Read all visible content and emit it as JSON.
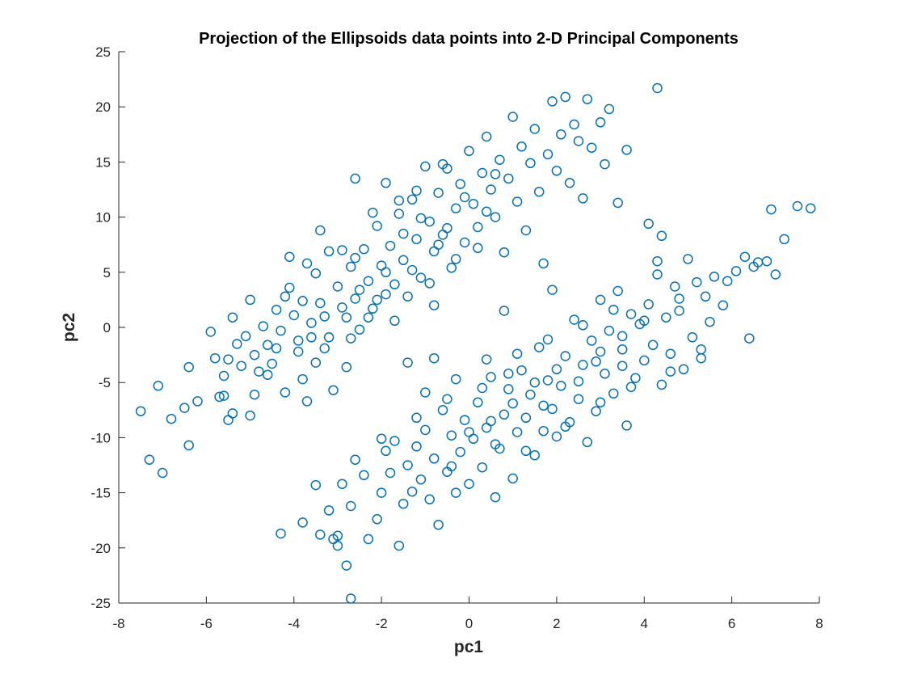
{
  "chart_data": {
    "type": "scatter",
    "title": "Projection of the Ellipsoids data points into 2-D Principal Components",
    "xlabel": "pc1",
    "ylabel": "pc2",
    "xlim": [
      -8,
      8
    ],
    "ylim": [
      -25,
      25
    ],
    "xticks": [
      -8,
      -6,
      -4,
      -2,
      0,
      2,
      4,
      6,
      8
    ],
    "yticks": [
      -25,
      -20,
      -15,
      -10,
      -5,
      0,
      5,
      10,
      15,
      20,
      25
    ],
    "xtick_labels": [
      "-8",
      "-6",
      "-4",
      "-2",
      "0",
      "2",
      "4",
      "6",
      "8"
    ],
    "ytick_labels": [
      "-25",
      "-20",
      "-15",
      "-10",
      "-5",
      "0",
      "5",
      "10",
      "15",
      "20",
      "25"
    ],
    "grid": false,
    "marker": "open-circle",
    "marker_color": "#0072BD",
    "series": [
      {
        "points": [
          [
            -7.5,
            -7.6
          ],
          [
            -7.3,
            -12.0
          ],
          [
            -7.0,
            -13.2
          ],
          [
            -7.1,
            -5.3
          ],
          [
            -6.8,
            -8.3
          ],
          [
            -6.5,
            -7.3
          ],
          [
            -6.4,
            -10.7
          ],
          [
            -6.4,
            -3.6
          ],
          [
            -6.2,
            -6.7
          ],
          [
            -5.8,
            -2.8
          ],
          [
            -5.7,
            -6.3
          ],
          [
            -5.6,
            -6.2
          ],
          [
            -5.6,
            -4.4
          ],
          [
            -5.5,
            -8.4
          ],
          [
            -5.4,
            -7.8
          ],
          [
            -5.4,
            0.9
          ],
          [
            -5.3,
            -1.5
          ],
          [
            -5.2,
            -3.5
          ],
          [
            -5.1,
            -0.8
          ],
          [
            -5.0,
            -8.0
          ],
          [
            -4.9,
            -6.1
          ],
          [
            -4.9,
            -2.5
          ],
          [
            -4.8,
            -4.0
          ],
          [
            -4.7,
            0.1
          ],
          [
            -4.6,
            -1.6
          ],
          [
            -4.5,
            -3.3
          ],
          [
            -4.4,
            1.6
          ],
          [
            -4.3,
            -0.3
          ],
          [
            -4.2,
            -5.9
          ],
          [
            -4.1,
            6.4
          ],
          [
            -4.1,
            3.6
          ],
          [
            -4.0,
            1.1
          ],
          [
            -3.9,
            -1.2
          ],
          [
            -3.8,
            -4.7
          ],
          [
            -3.8,
            2.4
          ],
          [
            -3.7,
            -6.7
          ],
          [
            -3.6,
            -0.9
          ],
          [
            -3.5,
            4.9
          ],
          [
            -3.4,
            2.2
          ],
          [
            -3.4,
            8.8
          ],
          [
            -3.3,
            1.0
          ],
          [
            -3.2,
            -0.9
          ],
          [
            -3.1,
            -5.7
          ],
          [
            -3.0,
            3.7
          ],
          [
            -3.0,
            -18.9
          ],
          [
            -2.9,
            7.0
          ],
          [
            -2.8,
            -3.6
          ],
          [
            -2.8,
            0.9
          ],
          [
            -2.7,
            5.5
          ],
          [
            -2.6,
            13.5
          ],
          [
            -2.6,
            2.6
          ],
          [
            -2.5,
            -0.2
          ],
          [
            -2.4,
            7.1
          ],
          [
            -2.3,
            4.2
          ],
          [
            -2.2,
            1.7
          ],
          [
            -2.1,
            9.2
          ],
          [
            -2.0,
            5.6
          ],
          [
            -1.9,
            13.1
          ],
          [
            -1.9,
            3.0
          ],
          [
            -1.8,
            7.4
          ],
          [
            -1.7,
            0.6
          ],
          [
            -1.6,
            10.3
          ],
          [
            -1.5,
            6.1
          ],
          [
            -1.4,
            2.8
          ],
          [
            -1.3,
            11.6
          ],
          [
            -1.2,
            8.0
          ],
          [
            -1.1,
            4.5
          ],
          [
            -1.0,
            14.6
          ],
          [
            -0.9,
            9.6
          ],
          [
            -0.8,
            6.9
          ],
          [
            -0.8,
            2.0
          ],
          [
            -0.7,
            12.2
          ],
          [
            -0.6,
            8.4
          ],
          [
            -0.5,
            14.4
          ],
          [
            -0.4,
            5.4
          ],
          [
            -0.3,
            10.8
          ],
          [
            -0.2,
            13.0
          ],
          [
            -0.1,
            7.7
          ],
          [
            0.0,
            16.0
          ],
          [
            0.1,
            11.2
          ],
          [
            0.2,
            9.1
          ],
          [
            0.3,
            14.0
          ],
          [
            0.4,
            17.3
          ],
          [
            0.5,
            12.5
          ],
          [
            0.6,
            10.0
          ],
          [
            0.7,
            15.2
          ],
          [
            0.8,
            6.8
          ],
          [
            0.9,
            13.5
          ],
          [
            1.0,
            19.1
          ],
          [
            1.1,
            11.4
          ],
          [
            1.2,
            16.4
          ],
          [
            1.3,
            8.8
          ],
          [
            1.4,
            14.9
          ],
          [
            1.5,
            18.0
          ],
          [
            1.6,
            12.3
          ],
          [
            1.7,
            5.8
          ],
          [
            1.8,
            15.7
          ],
          [
            1.9,
            20.5
          ],
          [
            2.0,
            14.2
          ],
          [
            2.1,
            17.5
          ],
          [
            2.2,
            20.9
          ],
          [
            2.3,
            13.1
          ],
          [
            2.4,
            18.4
          ],
          [
            2.5,
            16.9
          ],
          [
            2.6,
            11.7
          ],
          [
            2.7,
            20.7
          ],
          [
            2.8,
            16.3
          ],
          [
            3.0,
            18.6
          ],
          [
            3.1,
            14.8
          ],
          [
            3.2,
            19.8
          ],
          [
            3.4,
            11.3
          ],
          [
            3.6,
            16.1
          ],
          [
            4.3,
            21.7
          ],
          [
            -3.9,
            -2.2
          ],
          [
            -3.6,
            0.4
          ],
          [
            -3.3,
            -1.9
          ],
          [
            -2.9,
            1.8
          ],
          [
            -2.7,
            -1.0
          ],
          [
            -2.5,
            3.4
          ],
          [
            -2.3,
            0.9
          ],
          [
            -2.1,
            2.5
          ],
          [
            -1.9,
            5.0
          ],
          [
            -1.7,
            3.9
          ],
          [
            -1.5,
            8.5
          ],
          [
            -1.3,
            5.2
          ],
          [
            -1.1,
            9.9
          ],
          [
            -0.9,
            4.0
          ],
          [
            -0.7,
            7.5
          ],
          [
            -0.5,
            9.0
          ],
          [
            -0.3,
            6.2
          ],
          [
            -0.1,
            11.8
          ],
          [
            0.2,
            7.2
          ],
          [
            0.4,
            10.5
          ],
          [
            -4.4,
            -1.9
          ],
          [
            -4.2,
            2.8
          ],
          [
            -3.7,
            5.8
          ],
          [
            -3.2,
            6.9
          ],
          [
            -2.6,
            6.3
          ],
          [
            -2.2,
            10.4
          ],
          [
            -1.6,
            11.5
          ],
          [
            -1.2,
            12.4
          ],
          [
            -0.6,
            14.8
          ],
          [
            0.6,
            13.9
          ],
          [
            -5.9,
            -0.4
          ],
          [
            -5.5,
            -2.9
          ],
          [
            -5.0,
            2.5
          ],
          [
            -4.6,
            -4.3
          ],
          [
            -3.5,
            -3.2
          ]
        ]
      },
      {
        "points": [
          [
            -4.3,
            -18.7
          ],
          [
            -3.8,
            -17.7
          ],
          [
            -3.5,
            -14.3
          ],
          [
            -3.4,
            -18.8
          ],
          [
            -3.2,
            -16.6
          ],
          [
            -3.1,
            -19.2
          ],
          [
            -3.0,
            -19.8
          ],
          [
            -2.9,
            -14.2
          ],
          [
            -2.8,
            -21.6
          ],
          [
            -2.7,
            -16.2
          ],
          [
            -2.7,
            -24.6
          ],
          [
            -2.6,
            -12.0
          ],
          [
            -2.4,
            -13.4
          ],
          [
            -2.3,
            -19.2
          ],
          [
            -2.1,
            -17.4
          ],
          [
            -2.0,
            -15.0
          ],
          [
            -1.9,
            -11.2
          ],
          [
            -1.8,
            -13.2
          ],
          [
            -1.7,
            -10.3
          ],
          [
            -1.6,
            -19.8
          ],
          [
            -1.5,
            -16.0
          ],
          [
            -1.4,
            -12.5
          ],
          [
            -1.3,
            -14.9
          ],
          [
            -1.2,
            -10.8
          ],
          [
            -1.1,
            -13.8
          ],
          [
            -1.0,
            -9.3
          ],
          [
            -0.9,
            -15.6
          ],
          [
            -0.8,
            -11.9
          ],
          [
            -0.7,
            -17.9
          ],
          [
            -0.6,
            -7.5
          ],
          [
            -0.5,
            -13.1
          ],
          [
            -0.4,
            -9.8
          ],
          [
            -0.3,
            -15.0
          ],
          [
            -0.2,
            -11.3
          ],
          [
            -0.1,
            -8.4
          ],
          [
            0.0,
            -14.2
          ],
          [
            0.1,
            -10.1
          ],
          [
            0.2,
            -6.8
          ],
          [
            0.3,
            -12.7
          ],
          [
            0.4,
            -9.1
          ],
          [
            0.5,
            -4.5
          ],
          [
            0.6,
            -15.4
          ],
          [
            0.7,
            -11.0
          ],
          [
            0.8,
            -7.9
          ],
          [
            0.9,
            -5.6
          ],
          [
            1.0,
            -13.7
          ],
          [
            1.1,
            -9.5
          ],
          [
            1.2,
            -3.9
          ],
          [
            1.3,
            -8.2
          ],
          [
            1.4,
            -6.1
          ],
          [
            1.5,
            -11.6
          ],
          [
            1.6,
            -1.8
          ],
          [
            1.7,
            -7.1
          ],
          [
            1.8,
            -4.8
          ],
          [
            1.9,
            3.4
          ],
          [
            2.0,
            -9.9
          ],
          [
            2.1,
            -5.3
          ],
          [
            2.2,
            -2.6
          ],
          [
            2.3,
            -8.6
          ],
          [
            2.4,
            0.7
          ],
          [
            2.5,
            -6.5
          ],
          [
            2.6,
            -3.4
          ],
          [
            2.7,
            -10.4
          ],
          [
            2.8,
            -1.2
          ],
          [
            2.9,
            -7.6
          ],
          [
            3.0,
            2.5
          ],
          [
            3.1,
            -4.2
          ],
          [
            3.2,
            -0.3
          ],
          [
            3.3,
            -6.0
          ],
          [
            3.4,
            3.3
          ],
          [
            3.5,
            -2.0
          ],
          [
            3.6,
            -8.9
          ],
          [
            3.7,
            1.2
          ],
          [
            3.8,
            -4.6
          ],
          [
            3.9,
            0.3
          ],
          [
            4.0,
            -3.0
          ],
          [
            4.1,
            2.1
          ],
          [
            4.2,
            -1.6
          ],
          [
            4.3,
            4.8
          ],
          [
            4.4,
            -5.2
          ],
          [
            4.5,
            0.9
          ],
          [
            4.6,
            -2.4
          ],
          [
            4.7,
            3.7
          ],
          [
            4.8,
            1.5
          ],
          [
            4.9,
            -3.8
          ],
          [
            5.0,
            6.2
          ],
          [
            5.1,
            -0.9
          ],
          [
            5.2,
            4.1
          ],
          [
            5.3,
            -2.8
          ],
          [
            5.4,
            2.8
          ],
          [
            5.5,
            0.5
          ],
          [
            5.6,
            4.6
          ],
          [
            5.8,
            2.0
          ],
          [
            5.9,
            4.2
          ],
          [
            6.1,
            5.1
          ],
          [
            6.3,
            6.4
          ],
          [
            6.4,
            -1.0
          ],
          [
            6.5,
            5.5
          ],
          [
            6.6,
            5.9
          ],
          [
            6.8,
            6.0
          ],
          [
            6.9,
            10.7
          ],
          [
            7.0,
            4.8
          ],
          [
            7.2,
            8.0
          ],
          [
            7.5,
            11.0
          ],
          [
            7.8,
            10.8
          ],
          [
            4.1,
            9.4
          ],
          [
            4.4,
            8.3
          ],
          [
            4.3,
            6.0
          ],
          [
            0.8,
            1.5
          ],
          [
            -0.3,
            -4.7
          ],
          [
            -2.0,
            -10.1
          ],
          [
            -1.0,
            -5.9
          ],
          [
            0.4,
            -2.9
          ],
          [
            -0.8,
            -2.8
          ],
          [
            -1.4,
            -3.2
          ],
          [
            0.5,
            -8.5
          ],
          [
            1.0,
            -6.9
          ],
          [
            1.5,
            -5.0
          ],
          [
            2.0,
            -3.8
          ],
          [
            2.5,
            -4.9
          ],
          [
            3.0,
            -2.2
          ],
          [
            3.5,
            -0.8
          ],
          [
            4.0,
            0.6
          ],
          [
            0.3,
            -5.5
          ],
          [
            1.1,
            -2.4
          ],
          [
            1.8,
            -1.1
          ],
          [
            2.6,
            0.2
          ],
          [
            3.3,
            1.6
          ],
          [
            0.0,
            -9.5
          ],
          [
            -0.5,
            -6.5
          ],
          [
            1.3,
            -11.2
          ],
          [
            2.2,
            -9.0
          ],
          [
            3.0,
            -6.8
          ],
          [
            3.7,
            -5.4
          ],
          [
            4.6,
            -4.0
          ],
          [
            5.3,
            -2.0
          ],
          [
            0.9,
            -4.2
          ],
          [
            1.7,
            -9.4
          ],
          [
            2.9,
            -3.1
          ],
          [
            4.8,
            2.6
          ],
          [
            -1.2,
            -8.2
          ],
          [
            -0.4,
            -12.6
          ],
          [
            0.6,
            -10.6
          ],
          [
            1.9,
            -7.4
          ],
          [
            3.5,
            -3.5
          ]
        ]
      }
    ]
  }
}
